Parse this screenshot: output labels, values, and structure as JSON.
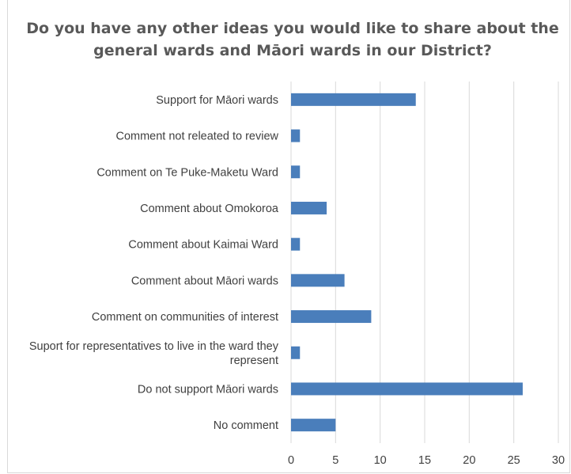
{
  "chart_data": {
    "type": "bar",
    "orientation": "horizontal",
    "title": "Do you have any other ideas you would like to share about the general wards and Māori wards in our District?",
    "xlabel": "",
    "ylabel": "",
    "xlim": [
      0,
      30
    ],
    "xticks": [
      "0",
      "5",
      "10",
      "15",
      "20",
      "25",
      "30"
    ],
    "grid": true,
    "legend": "none",
    "bar_color": "#4a7ebb",
    "categories": [
      [
        "Support for Māori wards"
      ],
      [
        "Comment not releated to review"
      ],
      [
        "Comment on Te Puke-Maketu Ward"
      ],
      [
        "Comment about Omokoroa"
      ],
      [
        "Comment about Kaimai Ward"
      ],
      [
        "Comment about Māori wards"
      ],
      [
        "Comment on communities of interest"
      ],
      [
        "Suport for representatives to live in the ward they",
        "represent"
      ],
      [
        "Do not support Māori wards"
      ],
      [
        "No comment"
      ]
    ],
    "values": [
      14,
      1,
      1,
      4,
      1,
      6,
      9,
      1,
      26,
      5
    ]
  }
}
